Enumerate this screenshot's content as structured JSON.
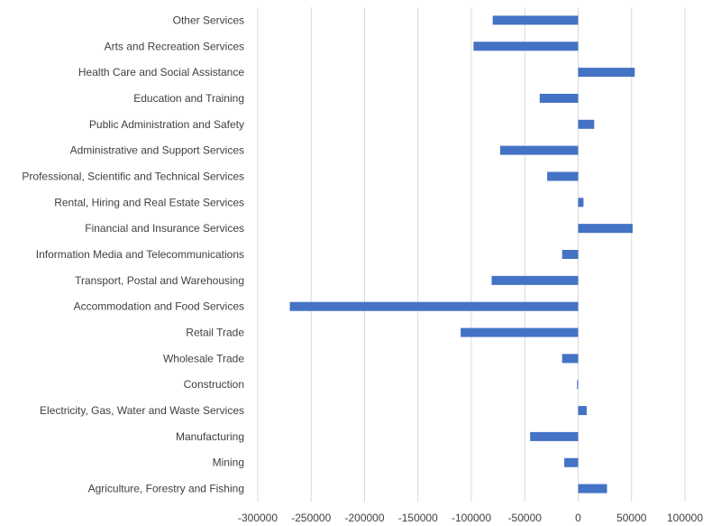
{
  "chart_data": {
    "type": "bar",
    "orientation": "horizontal",
    "categories": [
      "Other Services",
      "Arts and Recreation Services",
      "Health Care and Social Assistance",
      "Education and Training",
      "Public Administration and Safety",
      "Administrative and Support Services",
      "Professional, Scientific and Technical Services",
      "Rental, Hiring and Real Estate Services",
      "Financial and Insurance Services",
      "Information Media and Telecommunications",
      "Transport, Postal and Warehousing",
      "Accommodation and Food Services",
      "Retail Trade",
      "Wholesale Trade",
      "Construction",
      "Electricity, Gas, Water and Waste Services",
      "Manufacturing",
      "Mining",
      "Agriculture, Forestry and Fishing"
    ],
    "values": [
      -80000,
      -98000,
      53000,
      -36000,
      15000,
      -73000,
      -29000,
      5000,
      51000,
      -15000,
      -81000,
      -270000,
      -110000,
      -15000,
      -1000,
      8000,
      -45000,
      -13000,
      27000
    ],
    "xlim": [
      -300000,
      100000
    ],
    "xticks": [
      "-300000",
      "-250000",
      "-200000",
      "-150000",
      "-100000",
      "-50000",
      "0",
      "50000",
      "100000"
    ],
    "xtick_values": [
      -300000,
      -250000,
      -200000,
      -150000,
      -100000,
      -50000,
      0,
      50000,
      100000
    ],
    "bar_color": "#4472c4",
    "grid": true,
    "title": "",
    "xlabel": "",
    "ylabel": ""
  }
}
